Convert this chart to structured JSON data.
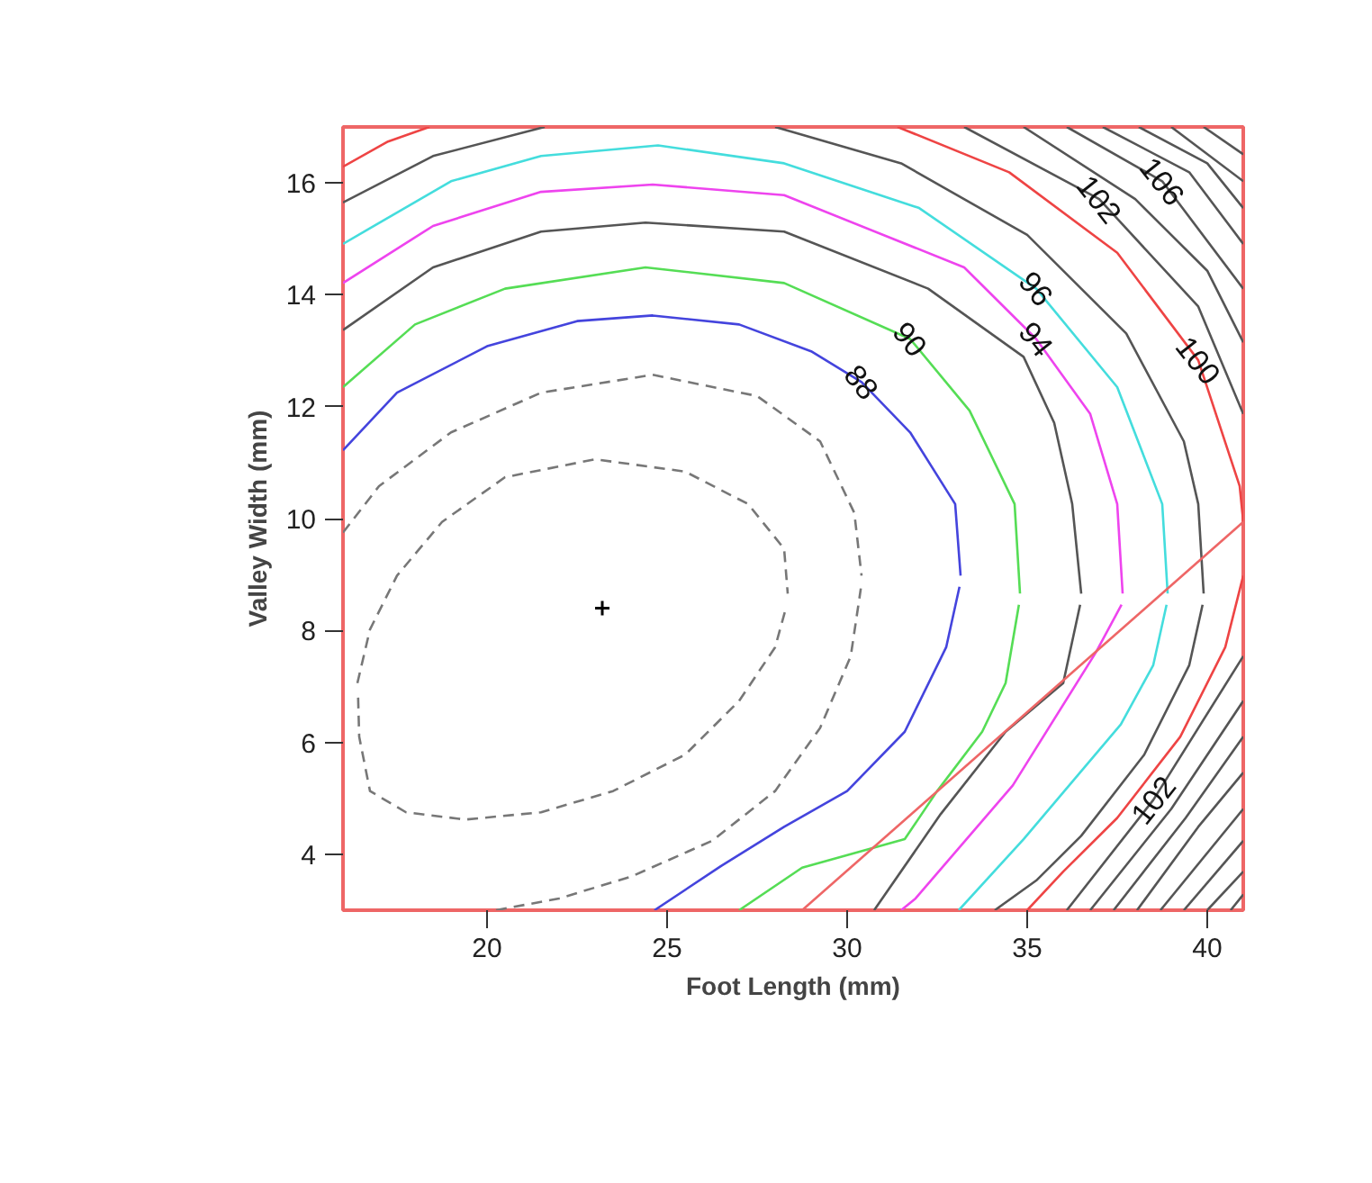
{
  "chart_data": {
    "type": "line",
    "xlabel": "Foot Length (mm)",
    "ylabel": "Valley Width (mm)",
    "xlim": [
      16,
      41
    ],
    "ylim": [
      3,
      17
    ],
    "xticks": [
      20,
      25,
      30,
      35,
      40
    ],
    "yticks": [
      4,
      6,
      8,
      10,
      12,
      14,
      16
    ],
    "series": [
      {
        "color": "#777777",
        "line_style": "dashed",
        "x": [
          16.4,
          16.75,
          17.5,
          18.75,
          20.5,
          23.0,
          25.5,
          27.25,
          28.25,
          28.35
        ],
        "values": [
          7.06,
          8.02,
          8.98,
          9.94,
          10.74,
          11.06,
          10.84,
          10.26,
          9.46,
          8.66
        ]
      },
      {
        "color": "#777777",
        "line_style": "dashed",
        "x": [
          16.42,
          16.45,
          16.75,
          17.75,
          19.4,
          21.5,
          23.5,
          25.5,
          27.0,
          28.0,
          28.3
        ],
        "values": [
          6.8,
          6.1,
          5.13,
          4.75,
          4.62,
          4.75,
          5.13,
          5.78,
          6.74,
          7.7,
          8.4
        ]
      },
      {
        "color": "#777777",
        "line_style": "dashed",
        "x": [
          16.0,
          17.0,
          19.0,
          21.5,
          24.6,
          27.5,
          29.25,
          30.2,
          30.4
        ],
        "values": [
          9.75,
          10.58,
          11.54,
          12.25,
          12.57,
          12.19,
          11.38,
          10.1,
          8.98
        ]
      },
      {
        "color": "#777777",
        "line_style": "dashed",
        "x": [
          20.25,
          22.0,
          24.0,
          26.25,
          28.0,
          29.25,
          30.1,
          30.38
        ],
        "values": [
          3.0,
          3.21,
          3.6,
          4.24,
          5.13,
          6.26,
          7.54,
          8.75
        ]
      },
      {
        "color": "#4444dd",
        "x": [
          16,
          17.5,
          20,
          22.5,
          24.6,
          27,
          29,
          30.4,
          31.75,
          33,
          33.15
        ],
        "values": [
          11.22,
          12.25,
          13.08,
          13.53,
          13.63,
          13.47,
          12.99,
          12.44,
          11.54,
          10.26,
          8.98
        ]
      },
      {
        "color": "#4444dd",
        "x": [
          24.65,
          26.5,
          28.25,
          30,
          31.6,
          32.75,
          33.12
        ],
        "values": [
          3.0,
          3.79,
          4.49,
          5.13,
          6.19,
          7.7,
          8.78
        ]
      },
      {
        "color": "#55dd55",
        "x": [
          16,
          18,
          20.5,
          24.4,
          28.25,
          31.75,
          33.4,
          34.65,
          34.8
        ],
        "values": [
          12.35,
          13.47,
          14.11,
          14.49,
          14.21,
          13.21,
          11.93,
          10.26,
          8.66
        ]
      },
      {
        "color": "#55dd55",
        "x": [
          27,
          28.75,
          31.6,
          32.5,
          33.75,
          34.4,
          34.77
        ],
        "values": [
          3.0,
          3.76,
          4.27,
          5.13,
          6.19,
          7.06,
          8.46
        ]
      },
      {
        "color": "#555555",
        "x": [
          16,
          18.5,
          21.5,
          24.4,
          28.25,
          32.25,
          34.9,
          35.75,
          36.25,
          36.5
        ],
        "values": [
          13.37,
          14.49,
          15.13,
          15.29,
          15.13,
          14.11,
          12.89,
          11.71,
          10.26,
          8.66
        ]
      },
      {
        "color": "#555555",
        "x": [
          30.75,
          32.6,
          34.4,
          36,
          36.47
        ],
        "values": [
          3.0,
          4.72,
          6.19,
          7.06,
          8.46
        ]
      },
      {
        "color": "#ee44ee",
        "x": [
          16,
          18.5,
          21.5,
          24.6,
          28.25,
          33.25,
          35.25,
          36.75,
          37.5,
          37.65
        ],
        "values": [
          14.21,
          15.23,
          15.84,
          15.97,
          15.78,
          14.49,
          13.21,
          11.87,
          10.26,
          8.66
        ]
      },
      {
        "color": "#ee44ee",
        "x": [
          31.5,
          31.9,
          34.6,
          36.9,
          37.62
        ],
        "values": [
          3.0,
          3.21,
          5.23,
          7.6,
          8.46
        ]
      },
      {
        "color": "#44dddd",
        "x": [
          16,
          19,
          21.5,
          24.75,
          28.25,
          32,
          35.25,
          37.5,
          38.75,
          38.9
        ],
        "values": [
          14.91,
          16.03,
          16.48,
          16.67,
          16.35,
          15.55,
          14.11,
          12.35,
          10.26,
          8.66
        ]
      },
      {
        "color": "#44dddd",
        "x": [
          33.1,
          34.9,
          37.6,
          38.5,
          38.87
        ],
        "values": [
          3.0,
          4.27,
          6.32,
          7.38,
          8.46
        ]
      },
      {
        "color": "#555555",
        "x": [
          16,
          18.5,
          21.6
        ],
        "values": [
          15.65,
          16.48,
          17.0
        ]
      },
      {
        "color": "#555555",
        "x": [
          28,
          31.5,
          35,
          37.75,
          39.35,
          39.75,
          39.9
        ],
        "values": [
          17.0,
          16.35,
          15.07,
          13.31,
          11.38,
          10.26,
          8.66
        ]
      },
      {
        "color": "#555555",
        "x": [
          34.1,
          35.25,
          36.5,
          38.25,
          39.5,
          39.87
        ],
        "values": [
          3.0,
          3.53,
          4.33,
          5.78,
          7.38,
          8.46
        ]
      },
      {
        "color": "#ee4444",
        "x": [
          16,
          17.25,
          18.4
        ],
        "values": [
          16.29,
          16.74,
          17.0
        ]
      },
      {
        "color": "#ee4444",
        "x": [
          31.4,
          34.5,
          37.5,
          39.75,
          40.9,
          41
        ],
        "values": [
          17.0,
          16.19,
          14.75,
          12.83,
          10.58,
          9.94
        ]
      },
      {
        "color": "#ee4444",
        "x": [
          35,
          36,
          37.5,
          39.25,
          40.5,
          41
        ],
        "values": [
          3.0,
          3.69,
          4.65,
          6.1,
          7.7,
          8.98
        ]
      },
      {
        "color": "#555555",
        "x": [
          33.25,
          37,
          39.75,
          41
        ],
        "values": [
          17,
          15.71,
          13.79,
          11.87
        ]
      },
      {
        "color": "#555555",
        "x": [
          34.9,
          38,
          40,
          41
        ],
        "values": [
          17,
          15.71,
          14.43,
          13.15
        ]
      },
      {
        "color": "#555555",
        "x": [
          36.1,
          38.75,
          41
        ],
        "values": [
          17,
          16.03,
          14.11
        ]
      },
      {
        "color": "#555555",
        "x": [
          37.1,
          39.5,
          41
        ],
        "values": [
          17,
          16.19,
          14.91
        ]
      },
      {
        "color": "#555555",
        "x": [
          38.1,
          40,
          41
        ],
        "values": [
          17,
          16.35,
          15.55
        ]
      },
      {
        "color": "#555555",
        "x": [
          39,
          41
        ],
        "values": [
          17,
          16.03
        ]
      },
      {
        "color": "#555555",
        "x": [
          39.9,
          41
        ],
        "values": [
          17,
          16.51
        ]
      },
      {
        "color": "#555555",
        "x": [
          36.1,
          38.5,
          41
        ],
        "values": [
          3,
          4.97,
          7.54
        ]
      },
      {
        "color": "#555555",
        "x": [
          36.75,
          39,
          41
        ],
        "values": [
          3,
          4.81,
          6.74
        ]
      },
      {
        "color": "#555555",
        "x": [
          37.4,
          39.4,
          41
        ],
        "values": [
          3,
          4.65,
          6.1
        ]
      },
      {
        "color": "#555555",
        "x": [
          38.05,
          39.75,
          41
        ],
        "values": [
          3,
          4.49,
          5.46
        ]
      },
      {
        "color": "#555555",
        "x": [
          38.7,
          41
        ],
        "values": [
          3,
          4.81
        ]
      },
      {
        "color": "#555555",
        "x": [
          39.35,
          41
        ],
        "values": [
          3,
          4.24
        ]
      },
      {
        "color": "#555555",
        "x": [
          40,
          41
        ],
        "values": [
          3,
          3.69
        ]
      },
      {
        "color": "#555555",
        "x": [
          40.65,
          41
        ],
        "values": [
          3,
          3.28
        ]
      },
      {
        "color": "#ee6666",
        "x": [
          28.75,
          41
        ],
        "values": [
          3.0,
          9.94
        ]
      },
      {
        "type": "scatter",
        "marker": "cross",
        "color": "#000000",
        "x": [
          23.2
        ],
        "values": [
          8.4
        ]
      }
    ],
    "annotations": [
      {
        "text": "88",
        "x": 30.4,
        "y": 12.44
      },
      {
        "text": "90",
        "x": 31.75,
        "y": 13.21
      },
      {
        "text": "94",
        "x": 35.25,
        "y": 13.21
      },
      {
        "text": "96",
        "x": 35.25,
        "y": 14.11
      },
      {
        "text": "102",
        "x": 37,
        "y": 15.71
      },
      {
        "text": "106",
        "x": 38.75,
        "y": 16.03
      },
      {
        "text": "100",
        "x": 39.75,
        "y": 12.83
      },
      {
        "text": "102",
        "x": 38.5,
        "y": 4.97
      }
    ]
  }
}
